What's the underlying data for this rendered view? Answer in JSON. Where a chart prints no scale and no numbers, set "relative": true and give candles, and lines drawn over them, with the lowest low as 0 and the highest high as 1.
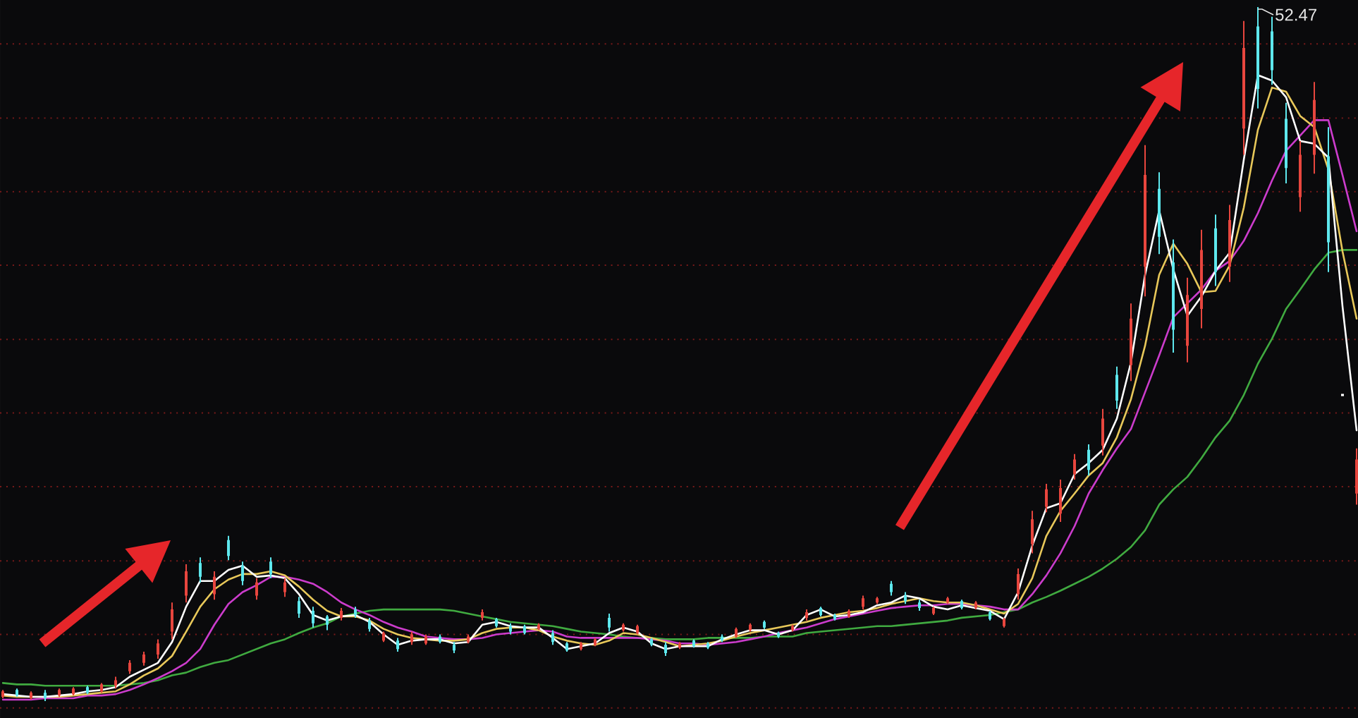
{
  "chart_data": {
    "type": "candlestick",
    "relative": true,
    "ref_lines": [
      {
        "axis": "y",
        "value": -0.01,
        "color": "#7a1a1a",
        "line_style": "dotted"
      },
      {
        "axis": "y",
        "value": 0.096,
        "color": "#7a1a1a",
        "line_style": "dotted"
      },
      {
        "axis": "y",
        "value": 0.202,
        "color": "#7a1a1a",
        "line_style": "dotted"
      },
      {
        "axis": "y",
        "value": 0.309,
        "color": "#7a1a1a",
        "line_style": "dotted"
      },
      {
        "axis": "y",
        "value": 0.415,
        "color": "#7a1a1a",
        "line_style": "dotted"
      },
      {
        "axis": "y",
        "value": 0.521,
        "color": "#7a1a1a",
        "line_style": "dotted"
      },
      {
        "axis": "y",
        "value": 0.628,
        "color": "#7a1a1a",
        "line_style": "dotted"
      },
      {
        "axis": "y",
        "value": 0.734,
        "color": "#7a1a1a",
        "line_style": "dotted"
      },
      {
        "axis": "y",
        "value": 0.84,
        "color": "#7a1a1a",
        "line_style": "dotted"
      },
      {
        "axis": "y",
        "value": 0.947,
        "color": "#7a1a1a",
        "line_style": "dotted"
      }
    ],
    "categories": [
      null,
      null,
      null,
      null,
      null,
      null,
      null,
      null,
      null,
      null,
      null,
      null,
      null,
      null,
      null,
      null,
      null,
      null,
      null,
      null,
      null,
      null,
      null,
      null,
      null,
      null,
      null,
      null,
      null,
      null,
      null,
      null,
      null,
      null,
      null,
      null,
      null,
      null,
      null,
      null,
      null,
      null,
      null,
      null,
      null,
      null,
      null,
      null,
      null,
      null,
      null,
      null,
      null,
      null,
      null,
      null,
      null,
      null,
      null,
      null,
      null,
      null,
      null,
      null,
      null,
      null,
      null,
      null,
      null,
      null,
      null,
      null,
      null,
      null,
      null,
      null,
      null,
      null,
      null,
      null,
      null,
      null,
      null,
      null,
      null,
      null,
      null,
      null,
      null,
      null,
      null,
      null,
      null,
      null,
      null,
      null,
      null
    ],
    "ohlc": [
      [
        0.006,
        0.016,
        0.004,
        0.014
      ],
      [
        0.016,
        0.018,
        0.006,
        0.008
      ],
      [
        0.004,
        0.014,
        0.002,
        0.012
      ],
      [
        0.012,
        0.016,
        0,
        0.004
      ],
      [
        0.008,
        0.018,
        0.006,
        0.016
      ],
      [
        0.01,
        0.02,
        0.008,
        0.018
      ],
      [
        0.02,
        0.022,
        0.01,
        0.012
      ],
      [
        0.014,
        0.026,
        0.012,
        0.024
      ],
      [
        0.022,
        0.035,
        0.018,
        0.03
      ],
      [
        0.043,
        0.059,
        0.039,
        0.055
      ],
      [
        0.055,
        0.071,
        0.051,
        0.067
      ],
      [
        0.067,
        0.089,
        0.061,
        0.083
      ],
      [
        0.1,
        0.142,
        0.089,
        0.132
      ],
      [
        0.152,
        0.197,
        0.142,
        0.187
      ],
      [
        0.199,
        0.207,
        0.171,
        0.179
      ],
      [
        0.154,
        0.187,
        0.146,
        0.179
      ],
      [
        0.232,
        0.238,
        0.203,
        0.209
      ],
      [
        0.195,
        0.201,
        0.167,
        0.173
      ],
      [
        0.152,
        0.177,
        0.146,
        0.171
      ],
      [
        0.201,
        0.207,
        0.177,
        0.183
      ],
      [
        0.157,
        0.177,
        0.15,
        0.171
      ],
      [
        0.144,
        0.15,
        0.12,
        0.126
      ],
      [
        0.13,
        0.136,
        0.106,
        0.112
      ],
      [
        0.122,
        0.124,
        0.102,
        0.11
      ],
      [
        0.12,
        0.134,
        0.116,
        0.13
      ],
      [
        0.132,
        0.136,
        0.12,
        0.124
      ],
      [
        0.116,
        0.12,
        0.1,
        0.104
      ],
      [
        0.087,
        0.1,
        0.085,
        0.098
      ],
      [
        0.087,
        0.091,
        0.071,
        0.075
      ],
      [
        0.085,
        0.1,
        0.081,
        0.096
      ],
      [
        0.083,
        0.096,
        0.081,
        0.093
      ],
      [
        0.093,
        0.096,
        0.083,
        0.085
      ],
      [
        0.081,
        0.085,
        0.069,
        0.073
      ],
      [
        0.085,
        0.096,
        0.083,
        0.093
      ],
      [
        0.12,
        0.132,
        0.116,
        0.128
      ],
      [
        0.118,
        0.12,
        0.106,
        0.108
      ],
      [
        0.108,
        0.112,
        0.096,
        0.1
      ],
      [
        0.108,
        0.11,
        0.096,
        0.098
      ],
      [
        0.104,
        0.112,
        0.102,
        0.11
      ],
      [
        0.098,
        0.102,
        0.081,
        0.085
      ],
      [
        0.083,
        0.085,
        0.071,
        0.073
      ],
      [
        0.075,
        0.085,
        0.073,
        0.083
      ],
      [
        0.081,
        0.091,
        0.079,
        0.089
      ],
      [
        0.12,
        0.126,
        0.1,
        0.106
      ],
      [
        0.102,
        0.112,
        0.1,
        0.11
      ],
      [
        0.098,
        0.11,
        0.096,
        0.108
      ],
      [
        0.089,
        0.091,
        0.079,
        0.081
      ],
      [
        0.081,
        0.085,
        0.065,
        0.069
      ],
      [
        0.077,
        0.085,
        0.075,
        0.083
      ],
      [
        0.087,
        0.089,
        0.077,
        0.079
      ],
      [
        0.083,
        0.085,
        0.075,
        0.077
      ],
      [
        0.093,
        0.096,
        0.085,
        0.087
      ],
      [
        0.093,
        0.106,
        0.091,
        0.104
      ],
      [
        0.102,
        0.112,
        0.1,
        0.11
      ],
      [
        0.114,
        0.116,
        0.104,
        0.106
      ],
      [
        0.098,
        0.1,
        0.091,
        0.093
      ],
      [
        0.102,
        0.11,
        0.1,
        0.108
      ],
      [
        0.12,
        0.132,
        0.116,
        0.128
      ],
      [
        0.134,
        0.136,
        0.122,
        0.124
      ],
      [
        0.124,
        0.126,
        0.116,
        0.118
      ],
      [
        0.122,
        0.132,
        0.12,
        0.13
      ],
      [
        0.136,
        0.152,
        0.132,
        0.148
      ],
      [
        0.142,
        0.15,
        0.14,
        0.148
      ],
      [
        0.169,
        0.173,
        0.152,
        0.157
      ],
      [
        0.152,
        0.157,
        0.14,
        0.144
      ],
      [
        0.142,
        0.146,
        0.13,
        0.134
      ],
      [
        0.126,
        0.136,
        0.124,
        0.134
      ],
      [
        0.142,
        0.15,
        0.14,
        0.148
      ],
      [
        0.144,
        0.146,
        0.132,
        0.134
      ],
      [
        0.134,
        0.144,
        0.132,
        0.142
      ],
      [
        0.128,
        0.13,
        0.116,
        0.118
      ],
      [
        0.108,
        0.12,
        0.106,
        0.118
      ],
      [
        0.154,
        0.191,
        0.146,
        0.183
      ],
      [
        0.226,
        0.274,
        0.213,
        0.262
      ],
      [
        0.28,
        0.313,
        0.272,
        0.305
      ],
      [
        0.27,
        0.319,
        0.258,
        0.307
      ],
      [
        0.327,
        0.356,
        0.319,
        0.348
      ],
      [
        0.362,
        0.37,
        0.325,
        0.333
      ],
      [
        0.368,
        0.421,
        0.354,
        0.407
      ],
      [
        0.47,
        0.482,
        0.421,
        0.433
      ],
      [
        0.484,
        0.573,
        0.461,
        0.551
      ],
      [
        0.626,
        0.801,
        0.583,
        0.758
      ],
      [
        0.738,
        0.762,
        0.644,
        0.669
      ],
      [
        0.632,
        0.665,
        0.502,
        0.535
      ],
      [
        0.512,
        0.61,
        0.488,
        0.585
      ],
      [
        0.565,
        0.679,
        0.537,
        0.65
      ],
      [
        0.681,
        0.701,
        0.598,
        0.618
      ],
      [
        0.626,
        0.715,
        0.604,
        0.693
      ],
      [
        0.825,
        0.98,
        0.787,
        0.941
      ],
      [
        0.972,
        1,
        0.854,
        0.882
      ],
      [
        0.965,
        0.986,
        0.888,
        0.909
      ],
      [
        0.839,
        0.862,
        0.746,
        0.768
      ],
      [
        0.726,
        0.807,
        0.705,
        0.787
      ],
      [
        0.787,
        0.892,
        0.76,
        0.866
      ],
      [
        0.785,
        0.827,
        0.618,
        0.661
      ],
      [
        0.441,
        0.441,
        0.441,
        0.441
      ],
      [
        0.299,
        0.364,
        0.283,
        0.348
      ]
    ],
    "colors": [
      "#e8463e",
      "#5ee8ee",
      "#e8463e",
      "#5ee8ee",
      "#e8463e",
      "#e8463e",
      "#5ee8ee",
      "#e8463e",
      "#e8463e",
      "#e8463e",
      "#e8463e",
      "#e8463e",
      "#e8463e",
      "#e8463e",
      "#5ee8ee",
      "#e8463e",
      "#5ee8ee",
      "#5ee8ee",
      "#e8463e",
      "#5ee8ee",
      "#e8463e",
      "#5ee8ee",
      "#5ee8ee",
      "#5ee8ee",
      "#e8463e",
      "#5ee8ee",
      "#5ee8ee",
      "#e8463e",
      "#5ee8ee",
      "#e8463e",
      "#e8463e",
      "#5ee8ee",
      "#5ee8ee",
      "#e8463e",
      "#e8463e",
      "#5ee8ee",
      "#5ee8ee",
      "#5ee8ee",
      "#e8463e",
      "#5ee8ee",
      "#5ee8ee",
      "#e8463e",
      "#e8463e",
      "#5ee8ee",
      "#e8463e",
      "#e8463e",
      "#5ee8ee",
      "#5ee8ee",
      "#e8463e",
      "#5ee8ee",
      "#5ee8ee",
      "#5ee8ee",
      "#e8463e",
      "#e8463e",
      "#5ee8ee",
      "#5ee8ee",
      "#e8463e",
      "#e8463e",
      "#5ee8ee",
      "#5ee8ee",
      "#e8463e",
      "#e8463e",
      "#e8463e",
      "#5ee8ee",
      "#5ee8ee",
      "#5ee8ee",
      "#e8463e",
      "#e8463e",
      "#5ee8ee",
      "#e8463e",
      "#5ee8ee",
      "#e8463e",
      "#e8463e",
      "#e8463e",
      "#e8463e",
      "#e8463e",
      "#e8463e",
      "#5ee8ee",
      "#e8463e",
      "#5ee8ee",
      "#e8463e",
      "#e8463e",
      "#5ee8ee",
      "#5ee8ee",
      "#e8463e",
      "#e8463e",
      "#5ee8ee",
      "#e8463e",
      "#e8463e",
      "#5ee8ee",
      "#5ee8ee",
      "#5ee8ee",
      "#e8463e",
      "#e8463e",
      "#5ee8ee",
      "#ffffff",
      "#e8463e"
    ],
    "series": [
      {
        "type": "line",
        "color": "#40aa40",
        "values": [
          0.026,
          0.024,
          0.024,
          0.022,
          0.022,
          0.022,
          0.022,
          0.022,
          0.022,
          0.024,
          0.026,
          0.03,
          0.037,
          0.041,
          0.049,
          0.055,
          0.059,
          0.067,
          0.075,
          0.083,
          0.089,
          0.098,
          0.106,
          0.112,
          0.122,
          0.126,
          0.13,
          0.132,
          0.132,
          0.132,
          0.132,
          0.132,
          0.13,
          0.126,
          0.122,
          0.118,
          0.114,
          0.112,
          0.11,
          0.108,
          0.104,
          0.1,
          0.098,
          0.096,
          0.093,
          0.091,
          0.091,
          0.089,
          0.089,
          0.089,
          0.091,
          0.091,
          0.091,
          0.091,
          0.093,
          0.093,
          0.093,
          0.098,
          0.1,
          0.102,
          0.104,
          0.106,
          0.108,
          0.108,
          0.11,
          0.112,
          0.114,
          0.116,
          0.12,
          0.122,
          0.124,
          0.128,
          0.132,
          0.142,
          0.15,
          0.159,
          0.169,
          0.179,
          0.191,
          0.205,
          0.222,
          0.246,
          0.283,
          0.305,
          0.323,
          0.35,
          0.38,
          0.404,
          0.441,
          0.486,
          0.522,
          0.565,
          0.593,
          0.622,
          0.646,
          0.65,
          0.65
        ]
      },
      {
        "type": "line",
        "color": "#cc3ccc",
        "values": [
          0.002,
          0.002,
          0.002,
          0.004,
          0.004,
          0.004,
          0.008,
          0.008,
          0.01,
          0.016,
          0.024,
          0.033,
          0.043,
          0.055,
          0.075,
          0.11,
          0.14,
          0.157,
          0.167,
          0.179,
          0.179,
          0.175,
          0.169,
          0.157,
          0.142,
          0.132,
          0.124,
          0.114,
          0.106,
          0.1,
          0.093,
          0.091,
          0.089,
          0.089,
          0.091,
          0.096,
          0.098,
          0.1,
          0.102,
          0.1,
          0.093,
          0.091,
          0.091,
          0.091,
          0.091,
          0.091,
          0.089,
          0.087,
          0.083,
          0.083,
          0.081,
          0.083,
          0.085,
          0.089,
          0.093,
          0.098,
          0.102,
          0.106,
          0.112,
          0.118,
          0.122,
          0.126,
          0.13,
          0.134,
          0.136,
          0.138,
          0.138,
          0.14,
          0.14,
          0.138,
          0.136,
          0.132,
          0.132,
          0.154,
          0.181,
          0.213,
          0.252,
          0.299,
          0.333,
          0.364,
          0.392,
          0.445,
          0.498,
          0.553,
          0.573,
          0.593,
          0.62,
          0.634,
          0.663,
          0.703,
          0.75,
          0.793,
          0.815,
          0.837,
          0.837,
          0.758,
          0.677
        ]
      },
      {
        "type": "line",
        "color": "#e8c85a",
        "values": [
          0.008,
          0.006,
          0.006,
          0.006,
          0.006,
          0.008,
          0.01,
          0.012,
          0.014,
          0.024,
          0.037,
          0.047,
          0.065,
          0.1,
          0.136,
          0.161,
          0.175,
          0.183,
          0.183,
          0.187,
          0.181,
          0.165,
          0.146,
          0.13,
          0.122,
          0.122,
          0.116,
          0.104,
          0.096,
          0.091,
          0.089,
          0.087,
          0.087,
          0.089,
          0.098,
          0.104,
          0.106,
          0.106,
          0.102,
          0.093,
          0.087,
          0.083,
          0.081,
          0.087,
          0.098,
          0.096,
          0.091,
          0.085,
          0.079,
          0.081,
          0.083,
          0.087,
          0.093,
          0.098,
          0.102,
          0.106,
          0.11,
          0.114,
          0.12,
          0.124,
          0.128,
          0.13,
          0.134,
          0.14,
          0.144,
          0.148,
          0.144,
          0.142,
          0.142,
          0.138,
          0.132,
          0.126,
          0.14,
          0.177,
          0.238,
          0.274,
          0.299,
          0.325,
          0.343,
          0.38,
          0.435,
          0.512,
          0.614,
          0.659,
          0.63,
          0.589,
          0.591,
          0.628,
          0.711,
          0.823,
          0.884,
          0.878,
          0.843,
          0.827,
          0.766,
          0.648,
          0.551
        ]
      },
      {
        "type": "line",
        "color": "#ffffff",
        "values": [
          0.01,
          0.008,
          0.006,
          0.006,
          0.008,
          0.01,
          0.014,
          0.016,
          0.02,
          0.035,
          0.045,
          0.055,
          0.085,
          0.136,
          0.173,
          0.173,
          0.189,
          0.195,
          0.179,
          0.181,
          0.177,
          0.154,
          0.124,
          0.116,
          0.122,
          0.124,
          0.114,
          0.096,
          0.081,
          0.087,
          0.089,
          0.089,
          0.083,
          0.085,
          0.11,
          0.114,
          0.108,
          0.106,
          0.106,
          0.091,
          0.075,
          0.079,
          0.083,
          0.098,
          0.106,
          0.1,
          0.083,
          0.075,
          0.079,
          0.079,
          0.079,
          0.089,
          0.096,
          0.102,
          0.102,
          0.096,
          0.102,
          0.124,
          0.132,
          0.122,
          0.124,
          0.128,
          0.138,
          0.142,
          0.152,
          0.148,
          0.136,
          0.132,
          0.138,
          0.134,
          0.13,
          0.118,
          0.157,
          0.224,
          0.278,
          0.285,
          0.327,
          0.343,
          0.362,
          0.407,
          0.488,
          0.614,
          0.707,
          0.622,
          0.555,
          0.583,
          0.62,
          0.646,
          0.78,
          0.902,
          0.894,
          0.87,
          0.807,
          0.803,
          0.783,
          0.569,
          0.39
        ]
      }
    ],
    "annotations": [
      "52.47"
    ]
  }
}
